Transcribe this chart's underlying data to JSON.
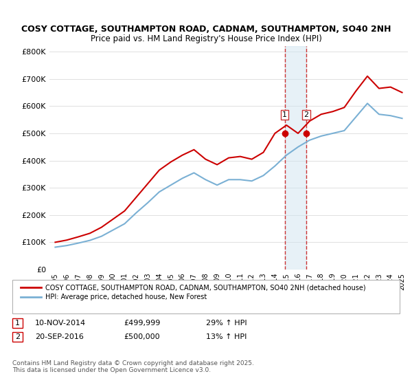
{
  "title1": "COSY COTTAGE, SOUTHAMPTON ROAD, CADNAM, SOUTHAMPTON, SO40 2NH",
  "title2": "Price paid vs. HM Land Registry's House Price Index (HPI)",
  "ylabel_ticks": [
    "£0",
    "£100K",
    "£200K",
    "£300K",
    "£400K",
    "£500K",
    "£600K",
    "£700K",
    "£800K"
  ],
  "ytick_values": [
    0,
    100000,
    200000,
    300000,
    400000,
    500000,
    600000,
    700000,
    800000
  ],
  "ylim": [
    0,
    820000
  ],
  "line1_color": "#cc0000",
  "line2_color": "#7ab0d4",
  "marker_color": "#cc0000",
  "vline_color": "#cc3333",
  "vshade_color": "#d0e4f0",
  "legend1": "COSY COTTAGE, SOUTHAMPTON ROAD, CADNAM, SOUTHAMPTON, SO40 2NH (detached house)",
  "legend2": "HPI: Average price, detached house, New Forest",
  "sale1_label": "1",
  "sale1_date": "10-NOV-2014",
  "sale1_price": "£499,999",
  "sale1_hpi": "29% ↑ HPI",
  "sale2_label": "2",
  "sale2_date": "20-SEP-2016",
  "sale2_price": "£500,000",
  "sale2_hpi": "13% ↑ HPI",
  "footnote": "Contains HM Land Registry data © Crown copyright and database right 2025.\nThis data is licensed under the Open Government Licence v3.0.",
  "hpi_years": [
    1995,
    1996,
    1997,
    1998,
    1999,
    2000,
    2001,
    2002,
    2003,
    2004,
    2005,
    2006,
    2007,
    2008,
    2009,
    2010,
    2011,
    2012,
    2013,
    2014,
    2015,
    2016,
    2017,
    2018,
    2019,
    2020,
    2021,
    2022,
    2023,
    2024,
    2025
  ],
  "hpi_values": [
    82000,
    88000,
    97000,
    107000,
    122000,
    145000,
    168000,
    208000,
    245000,
    285000,
    310000,
    335000,
    355000,
    330000,
    310000,
    330000,
    330000,
    325000,
    345000,
    380000,
    420000,
    450000,
    475000,
    490000,
    500000,
    510000,
    560000,
    610000,
    570000,
    565000,
    555000
  ],
  "price_years": [
    1995,
    1996,
    1997,
    1998,
    1999,
    2000,
    2001,
    2002,
    2003,
    2004,
    2005,
    2006,
    2007,
    2008,
    2009,
    2010,
    2011,
    2012,
    2013,
    2014,
    2015,
    2016,
    2017,
    2018,
    2019,
    2020,
    2021,
    2022,
    2023,
    2024,
    2025
  ],
  "price_values": [
    100000,
    108000,
    120000,
    133000,
    155000,
    185000,
    215000,
    265000,
    315000,
    365000,
    395000,
    420000,
    440000,
    405000,
    385000,
    410000,
    415000,
    405000,
    430000,
    500000,
    530000,
    500000,
    545000,
    570000,
    580000,
    595000,
    655000,
    710000,
    665000,
    670000,
    650000
  ],
  "sale1_x": 2014.85,
  "sale2_x": 2016.72,
  "sale1_y": 499999,
  "sale2_y": 500000,
  "xmin": 1994.5,
  "xmax": 2025.5,
  "xtick_years": [
    1995,
    1996,
    1997,
    1998,
    1999,
    2000,
    2001,
    2002,
    2003,
    2004,
    2005,
    2006,
    2007,
    2008,
    2009,
    2010,
    2011,
    2012,
    2013,
    2014,
    2015,
    2016,
    2017,
    2018,
    2019,
    2020,
    2021,
    2022,
    2023,
    2024,
    2025
  ]
}
